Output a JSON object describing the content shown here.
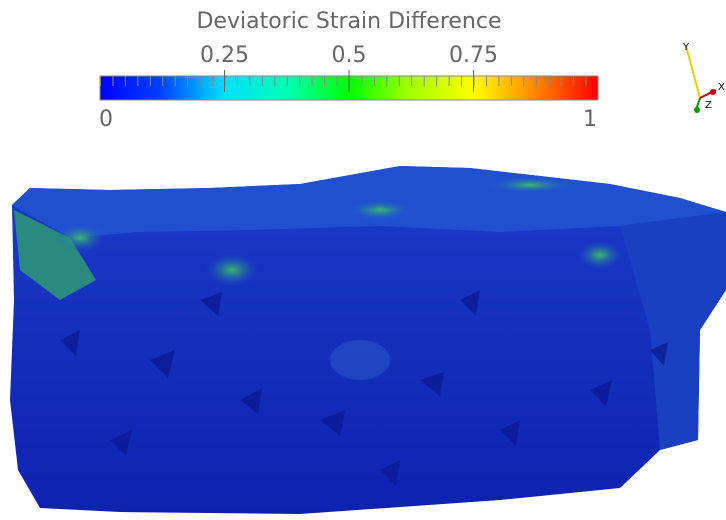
{
  "colorbar": {
    "title": "Deviatoric Strain Difference",
    "range": [
      0,
      1
    ],
    "ticks": [
      0.25,
      0.5,
      0.75
    ]
  },
  "axes_triad": {
    "labels": [
      "X",
      "Y",
      "Z"
    ]
  }
}
